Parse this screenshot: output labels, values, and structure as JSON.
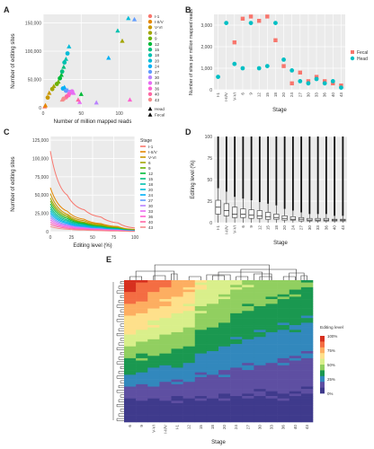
{
  "panels": {
    "A": {
      "letter": "A",
      "chart_data": {
        "type": "scatter",
        "xlabel": "Number of million mapped reads",
        "ylabel": "Number of editing sites",
        "xticks": [
          "0",
          "50",
          "100"
        ],
        "yticks": [
          "0",
          "50,000",
          "100,000",
          "150,000"
        ],
        "xlim": [
          0,
          130
        ],
        "ylim": [
          0,
          165000
        ],
        "legend_stage": [
          "I-1",
          "I-II/V",
          "V-VI",
          "6",
          "9",
          "12",
          "15",
          "18",
          "20",
          "24",
          "27",
          "30",
          "33",
          "36",
          "40",
          "43"
        ],
        "legend_tissue": [
          "Fecal",
          "Head"
        ],
        "points": [
          {
            "x": 2,
            "y": 2000,
            "stage": "I-1",
            "tissue": "Head"
          },
          {
            "x": 3,
            "y": 4000,
            "stage": "I-II/V",
            "tissue": "Head"
          },
          {
            "x": 6,
            "y": 18000,
            "stage": "V-VI",
            "tissue": "Fecal"
          },
          {
            "x": 8,
            "y": 26000,
            "stage": "V-VI",
            "tissue": "Head"
          },
          {
            "x": 12,
            "y": 33000,
            "stage": "6",
            "tissue": "Fecal"
          },
          {
            "x": 14,
            "y": 38000,
            "stage": "6",
            "tissue": "Head"
          },
          {
            "x": 18,
            "y": 42000,
            "stage": "9",
            "tissue": "Fecal"
          },
          {
            "x": 20,
            "y": 46000,
            "stage": "9",
            "tissue": "Head"
          },
          {
            "x": 22,
            "y": 52000,
            "stage": "12",
            "tissue": "Fecal"
          },
          {
            "x": 24,
            "y": 58000,
            "stage": "12",
            "tissue": "Head"
          },
          {
            "x": 25,
            "y": 64000,
            "stage": "15",
            "tissue": "Fecal"
          },
          {
            "x": 27,
            "y": 72000,
            "stage": "15",
            "tissue": "Head"
          },
          {
            "x": 28,
            "y": 80000,
            "stage": "18",
            "tissue": "Fecal"
          },
          {
            "x": 30,
            "y": 86000,
            "stage": "18",
            "tissue": "Head"
          },
          {
            "x": 32,
            "y": 96000,
            "stage": "20",
            "tissue": "Fecal"
          },
          {
            "x": 34,
            "y": 108000,
            "stage": "20",
            "tissue": "Head"
          },
          {
            "x": 26,
            "y": 34000,
            "stage": "24",
            "tissue": "Fecal"
          },
          {
            "x": 28,
            "y": 36000,
            "stage": "24",
            "tissue": "Head"
          },
          {
            "x": 30,
            "y": 30000,
            "stage": "27",
            "tissue": "Fecal"
          },
          {
            "x": 32,
            "y": 31000,
            "stage": "27",
            "tissue": "Head"
          },
          {
            "x": 35,
            "y": 28000,
            "stage": "30",
            "tissue": "Fecal"
          },
          {
            "x": 36,
            "y": 27000,
            "stage": "30",
            "tissue": "Head"
          },
          {
            "x": 38,
            "y": 29000,
            "stage": "33",
            "tissue": "Fecal"
          },
          {
            "x": 40,
            "y": 26000,
            "stage": "33",
            "tissue": "Head"
          },
          {
            "x": 34,
            "y": 24000,
            "stage": "36",
            "tissue": "Fecal"
          },
          {
            "x": 33,
            "y": 22000,
            "stage": "36",
            "tissue": "Head"
          },
          {
            "x": 31,
            "y": 20000,
            "stage": "40",
            "tissue": "Fecal"
          },
          {
            "x": 29,
            "y": 18000,
            "stage": "40",
            "tissue": "Head"
          },
          {
            "x": 27,
            "y": 16000,
            "stage": "43",
            "tissue": "Fecal"
          },
          {
            "x": 25,
            "y": 14000,
            "stage": "43",
            "tissue": "Head"
          },
          {
            "x": 86,
            "y": 88000,
            "stage": "24",
            "tissue": "Head"
          },
          {
            "x": 112,
            "y": 158000,
            "stage": "20",
            "tissue": "Head"
          },
          {
            "x": 120,
            "y": 156000,
            "stage": "27",
            "tissue": "Head"
          },
          {
            "x": 98,
            "y": 136000,
            "stage": "18",
            "tissue": "Head"
          },
          {
            "x": 104,
            "y": 118000,
            "stage": "6",
            "tissue": "Head"
          },
          {
            "x": 114,
            "y": 14000,
            "stage": "36",
            "tissue": "Head"
          },
          {
            "x": 70,
            "y": 9000,
            "stage": "30",
            "tissue": "Head"
          },
          {
            "x": 50,
            "y": 24000,
            "stage": "12",
            "tissue": "Head"
          },
          {
            "x": 48,
            "y": 10000,
            "stage": "33",
            "tissue": "Head"
          },
          {
            "x": 46,
            "y": 14000,
            "stage": "40",
            "tissue": "Head"
          }
        ]
      }
    },
    "B": {
      "letter": "B",
      "chart_data": {
        "type": "scatter",
        "xlabel": "Stage",
        "ylabel": "Number of sites per million mapped reads",
        "categories": [
          "I-1",
          "I-II/V",
          "V-VI",
          "6",
          "9",
          "12",
          "15",
          "18",
          "20",
          "24",
          "27",
          "30",
          "33",
          "36",
          "40",
          "43"
        ],
        "yticks": [
          "0",
          "1,000",
          "2,000",
          "3,000"
        ],
        "ylim": [
          0,
          3500
        ],
        "legend": [
          "Fecal",
          "Head"
        ],
        "series": [
          {
            "name": "Fecal",
            "values": [
              null,
              null,
              2200,
              3300,
              3400,
              3200,
              3400,
              2300,
              1100,
              300,
              800,
              400,
              600,
              400,
              300,
              200
            ]
          },
          {
            "name": "Head",
            "values": [
              600,
              3100,
              1200,
              1000,
              3100,
              1000,
              1100,
              3100,
              1400,
              900,
              400,
              300,
              500,
              300,
              400,
              100
            ]
          }
        ]
      }
    },
    "C": {
      "letter": "C",
      "chart_data": {
        "type": "line",
        "xlabel": "Editing level (%)",
        "ylabel": "Number of editing sites",
        "xticks": [
          "0",
          "25",
          "50",
          "75",
          "100"
        ],
        "yticks": [
          "0",
          "25,000",
          "50,000",
          "75,000",
          "100,000",
          "125,000"
        ],
        "xlim": [
          0,
          100
        ],
        "ylim": [
          0,
          130000
        ],
        "legend_title": "Stage",
        "series": [
          {
            "name": "I-1",
            "values": [
              110000,
              50000,
              30000,
              20000,
              12000,
              5000
            ]
          },
          {
            "name": "I-II/V",
            "values": [
              60000,
              28000,
              17000,
              11000,
              7000,
              3000
            ]
          },
          {
            "name": "V-VI",
            "values": [
              52000,
              24000,
              15000,
              10000,
              6000,
              2500
            ]
          },
          {
            "name": "6",
            "values": [
              46000,
              22000,
              13000,
              9000,
              5500,
              2200
            ]
          },
          {
            "name": "9",
            "values": [
              42000,
              20000,
              12000,
              8000,
              5000,
              2000
            ]
          },
          {
            "name": "12",
            "values": [
              38000,
              18000,
              11000,
              7000,
              4500,
              1800
            ]
          },
          {
            "name": "15",
            "values": [
              34000,
              16000,
              10000,
              6500,
              4000,
              1600
            ]
          },
          {
            "name": "18",
            "values": [
              31000,
              14500,
              9000,
              6000,
              3600,
              1400
            ]
          },
          {
            "name": "20",
            "values": [
              28000,
              13000,
              8000,
              5400,
              3200,
              1200
            ]
          },
          {
            "name": "24",
            "values": [
              25000,
              11500,
              7000,
              4800,
              2800,
              1000
            ]
          },
          {
            "name": "27",
            "values": [
              22000,
              10000,
              6200,
              4200,
              2500,
              900
            ]
          },
          {
            "name": "30",
            "values": [
              19000,
              8800,
              5400,
              3600,
              2200,
              800
            ]
          },
          {
            "name": "33",
            "values": [
              16000,
              7500,
              4600,
              3100,
              1900,
              700
            ]
          },
          {
            "name": "36",
            "values": [
              13000,
              6200,
              3800,
              2600,
              1600,
              600
            ]
          },
          {
            "name": "40",
            "values": [
              10000,
              4800,
              3000,
              2000,
              1300,
              500
            ]
          },
          {
            "name": "43",
            "values": [
              7000,
              3400,
              2100,
              1400,
              900,
              400
            ]
          }
        ],
        "x": [
          0,
          20,
          40,
          60,
          80,
          100
        ]
      }
    },
    "D": {
      "letter": "D",
      "chart_data": {
        "type": "box",
        "xlabel": "Stage",
        "ylabel": "Editing level (%)",
        "categories": [
          "I-1",
          "I-II/V",
          "V-VI",
          "6",
          "9",
          "12",
          "15",
          "18",
          "20",
          "24",
          "27",
          "30",
          "33",
          "36",
          "40",
          "43"
        ],
        "yticks": [
          "0",
          "25",
          "50",
          "75",
          "100"
        ],
        "ylim": [
          0,
          100
        ],
        "boxes": [
          {
            "q1": 10,
            "median": 18,
            "q3": 26,
            "whisker_low": 0,
            "whisker_high": 40
          },
          {
            "q1": 8,
            "median": 14,
            "q3": 22,
            "whisker_low": 0,
            "whisker_high": 36
          },
          {
            "q1": 6,
            "median": 10,
            "q3": 18,
            "whisker_low": 0,
            "whisker_high": 30
          },
          {
            "q1": 6,
            "median": 10,
            "q3": 16,
            "whisker_low": 0,
            "whisker_high": 28
          },
          {
            "q1": 5,
            "median": 9,
            "q3": 15,
            "whisker_low": 0,
            "whisker_high": 26
          },
          {
            "q1": 5,
            "median": 8,
            "q3": 14,
            "whisker_low": 0,
            "whisker_high": 24
          },
          {
            "q1": 4,
            "median": 7,
            "q3": 12,
            "whisker_low": 0,
            "whisker_high": 22
          },
          {
            "q1": 4,
            "median": 6,
            "q3": 10,
            "whisker_low": 0,
            "whisker_high": 20
          },
          {
            "q1": 3,
            "median": 5,
            "q3": 8,
            "whisker_low": 0,
            "whisker_high": 16
          },
          {
            "q1": 3,
            "median": 4,
            "q3": 7,
            "whisker_low": 0,
            "whisker_high": 14
          },
          {
            "q1": 2,
            "median": 4,
            "q3": 6,
            "whisker_low": 0,
            "whisker_high": 12
          },
          {
            "q1": 2,
            "median": 3,
            "q3": 5,
            "whisker_low": 0,
            "whisker_high": 10
          },
          {
            "q1": 2,
            "median": 3,
            "q3": 5,
            "whisker_low": 0,
            "whisker_high": 10
          },
          {
            "q1": 2,
            "median": 3,
            "q3": 5,
            "whisker_low": 0,
            "whisker_high": 10
          },
          {
            "q1": 2,
            "median": 3,
            "q3": 4,
            "whisker_low": 0,
            "whisker_high": 8
          },
          {
            "q1": 2,
            "median": 3,
            "q3": 4,
            "whisker_low": 0,
            "whisker_high": 8
          }
        ]
      }
    },
    "E": {
      "letter": "E",
      "chart_data": {
        "type": "heatmap",
        "xlabel": "Stage",
        "categories": [
          "6",
          "9",
          "V-VI",
          "I-II/V",
          "I-1",
          "12",
          "15",
          "18",
          "20",
          "24",
          "27",
          "30",
          "33",
          "36",
          "40",
          "43"
        ],
        "legend_title": "Editing level",
        "legend_ticks": [
          "100%",
          "75%",
          "50%",
          "25%",
          "0%"
        ],
        "colors": [
          "#d7301f",
          "#f46d43",
          "#fdae61",
          "#fee08b",
          "#d9ef8b",
          "#91cf60",
          "#1a9850",
          "#3288bd",
          "#5e4fa2",
          "#3f3a8c"
        ]
      }
    }
  },
  "colors": {
    "stage_palette": [
      "#f8766d",
      "#e58700",
      "#c99800",
      "#a3a500",
      "#6bb100",
      "#00ba38",
      "#00bf7d",
      "#00c0af",
      "#00bcd8",
      "#00b0f6",
      "#619cff",
      "#b983ff",
      "#e76bf3",
      "#fd61d1",
      "#ff67a4",
      "#f48c8c"
    ],
    "fecal": "#f8766d",
    "head": "#00bfc4"
  }
}
